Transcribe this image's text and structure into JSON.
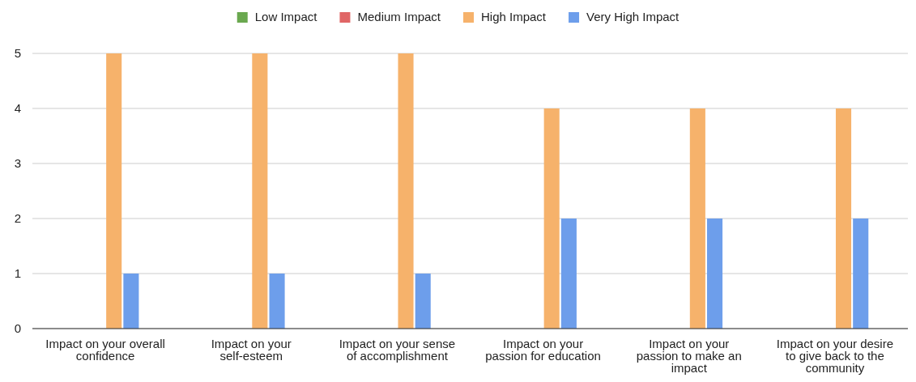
{
  "chart_data": {
    "type": "bar",
    "categories": [
      "Impact on your overall confidence",
      "Impact on your self-esteem",
      "Impact on your sense of accomplishment",
      "Impact on your passion for education",
      "Impact on your passion to make an impact",
      "Impact on your desire to give back to the community"
    ],
    "series": [
      {
        "name": "Low Impact",
        "color": "#6aa84f",
        "values": [
          0,
          0,
          0,
          0,
          0,
          0
        ]
      },
      {
        "name": "Medium Impact",
        "color": "#e06666",
        "values": [
          0,
          0,
          0,
          0,
          0,
          0
        ]
      },
      {
        "name": "High Impact",
        "color": "#f6b26b",
        "values": [
          5,
          5,
          5,
          4,
          4,
          4
        ]
      },
      {
        "name": "Very High Impact",
        "color": "#6d9eeb",
        "values": [
          1,
          1,
          1,
          2,
          2,
          2
        ]
      }
    ],
    "ylim": [
      0,
      5
    ],
    "yticks": [
      0,
      1,
      2,
      3,
      4,
      5
    ],
    "grid": "y",
    "legend": "top"
  }
}
